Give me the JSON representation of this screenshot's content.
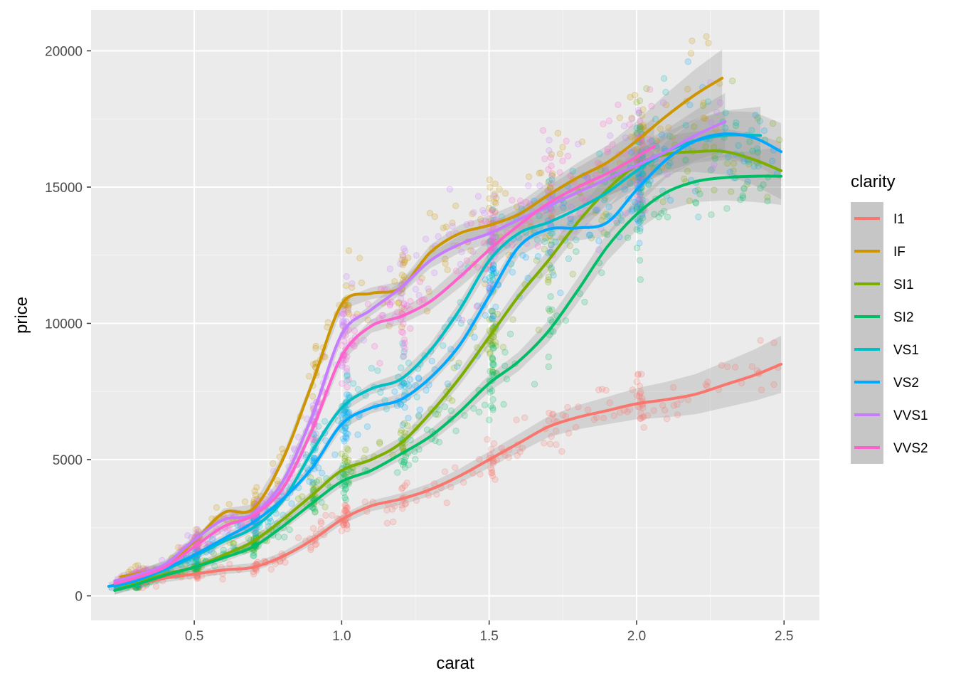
{
  "chart_data": {
    "type": "scatter",
    "xlabel": "carat",
    "ylabel": "price",
    "xlim": [
      0.15,
      2.62
    ],
    "ylim": [
      -900,
      21500
    ],
    "x_ticks": [
      0.5,
      1.0,
      1.5,
      2.0,
      2.5
    ],
    "x_tick_labels": [
      "0.5",
      "1.0",
      "1.5",
      "2.0",
      "2.5"
    ],
    "y_ticks": [
      0,
      5000,
      10000,
      15000,
      20000
    ],
    "y_tick_labels": [
      "0",
      "5000",
      "10000",
      "15000",
      "20000"
    ],
    "grid": true,
    "legend": {
      "title": "clarity",
      "position": "right"
    },
    "smooth_band": true,
    "series": [
      {
        "name": "I1",
        "color": "#F8766D",
        "x": [
          0.3,
          0.4,
          0.5,
          0.6,
          0.7,
          0.8,
          0.9,
          1.0,
          1.1,
          1.2,
          1.3,
          1.4,
          1.5,
          1.6,
          1.7,
          1.8,
          1.9,
          2.0,
          2.1,
          2.2,
          2.3,
          2.4,
          2.49
        ],
        "y": [
          400,
          650,
          800,
          950,
          1050,
          1450,
          2050,
          2800,
          3300,
          3550,
          3900,
          4400,
          5000,
          5600,
          6200,
          6550,
          6800,
          7050,
          7200,
          7400,
          7750,
          8100,
          8500
        ]
      },
      {
        "name": "IF",
        "color": "#CD9600",
        "x": [
          0.25,
          0.3,
          0.4,
          0.5,
          0.6,
          0.7,
          0.8,
          0.9,
          1.0,
          1.1,
          1.2,
          1.3,
          1.4,
          1.5,
          1.6,
          1.7,
          1.8,
          1.9,
          2.0,
          2.1,
          2.2,
          2.29
        ],
        "y": [
          700,
          800,
          1100,
          2000,
          3050,
          3200,
          5000,
          7800,
          10700,
          11100,
          11300,
          12600,
          13300,
          13600,
          14000,
          14700,
          15350,
          15900,
          16700,
          17600,
          18400,
          19000
        ]
      },
      {
        "name": "SI1",
        "color": "#7CAE00",
        "x": [
          0.23,
          0.3,
          0.4,
          0.5,
          0.6,
          0.7,
          0.8,
          0.9,
          1.0,
          1.1,
          1.2,
          1.3,
          1.4,
          1.5,
          1.6,
          1.7,
          1.8,
          1.9,
          2.0,
          2.1,
          2.2,
          2.3,
          2.4,
          2.49
        ],
        "y": [
          200,
          450,
          800,
          1050,
          1500,
          2000,
          2800,
          3700,
          4600,
          5000,
          5600,
          6700,
          8000,
          9500,
          11000,
          12300,
          13700,
          14900,
          15800,
          16200,
          16300,
          16300,
          16000,
          15600
        ]
      },
      {
        "name": "SI2",
        "color": "#00BE67",
        "x": [
          0.23,
          0.3,
          0.4,
          0.5,
          0.6,
          0.7,
          0.8,
          0.9,
          1.0,
          1.1,
          1.2,
          1.3,
          1.4,
          1.5,
          1.6,
          1.7,
          1.8,
          1.9,
          2.0,
          2.1,
          2.2,
          2.3,
          2.4,
          2.49
        ],
        "y": [
          200,
          400,
          750,
          1050,
          1400,
          1800,
          2550,
          3400,
          4200,
          4600,
          5200,
          5850,
          6750,
          7800,
          8600,
          9700,
          11200,
          12800,
          14000,
          14800,
          15200,
          15350,
          15400,
          15400
        ]
      },
      {
        "name": "VS1",
        "color": "#00BFC4",
        "x": [
          0.23,
          0.3,
          0.4,
          0.5,
          0.6,
          0.7,
          0.8,
          0.9,
          1.0,
          1.1,
          1.2,
          1.3,
          1.4,
          1.5,
          1.6,
          1.7,
          1.8,
          1.9,
          2.0,
          2.1,
          2.2,
          2.3,
          2.42
        ],
        "y": [
          350,
          550,
          950,
          1450,
          2000,
          2500,
          3500,
          5300,
          6900,
          7600,
          7950,
          9000,
          10500,
          12300,
          13300,
          13700,
          14200,
          14800,
          15600,
          16300,
          16700,
          16900,
          16900
        ]
      },
      {
        "name": "VS2",
        "color": "#00A9FF",
        "x": [
          0.21,
          0.3,
          0.4,
          0.5,
          0.6,
          0.7,
          0.8,
          0.9,
          1.0,
          1.1,
          1.2,
          1.3,
          1.4,
          1.5,
          1.6,
          1.7,
          1.8,
          1.9,
          2.0,
          2.1,
          2.2,
          2.3,
          2.4,
          2.49
        ],
        "y": [
          350,
          550,
          1000,
          1500,
          2100,
          2700,
          3550,
          4700,
          6300,
          6900,
          7200,
          8000,
          9200,
          11000,
          12800,
          13450,
          13500,
          13700,
          14900,
          16000,
          16700,
          16950,
          16800,
          16300
        ]
      },
      {
        "name": "VVS1",
        "color": "#C77CFF",
        "x": [
          0.23,
          0.3,
          0.4,
          0.5,
          0.6,
          0.7,
          0.8,
          0.9,
          1.0,
          1.1,
          1.2,
          1.3,
          1.4,
          1.5,
          1.6,
          1.7,
          1.8,
          1.9,
          2.0,
          2.1,
          2.2,
          2.3
        ],
        "y": [
          550,
          750,
          1150,
          2050,
          2800,
          3000,
          4200,
          6600,
          9600,
          10500,
          11300,
          12300,
          12900,
          13300,
          13800,
          14300,
          14800,
          15300,
          15800,
          16300,
          16900,
          17400
        ]
      },
      {
        "name": "VVS2",
        "color": "#FF61CC",
        "x": [
          0.23,
          0.3,
          0.4,
          0.5,
          0.6,
          0.7,
          0.8,
          0.9,
          1.0,
          1.1,
          1.2,
          1.3,
          1.4,
          1.5,
          1.6,
          1.7,
          1.8,
          1.9,
          2.0,
          2.06
        ],
        "y": [
          450,
          650,
          1050,
          1800,
          2550,
          2950,
          3950,
          6100,
          8800,
          9900,
          10250,
          10800,
          11700,
          12700,
          13600,
          14400,
          15000,
          15500,
          16100,
          16500
        ]
      }
    ]
  }
}
